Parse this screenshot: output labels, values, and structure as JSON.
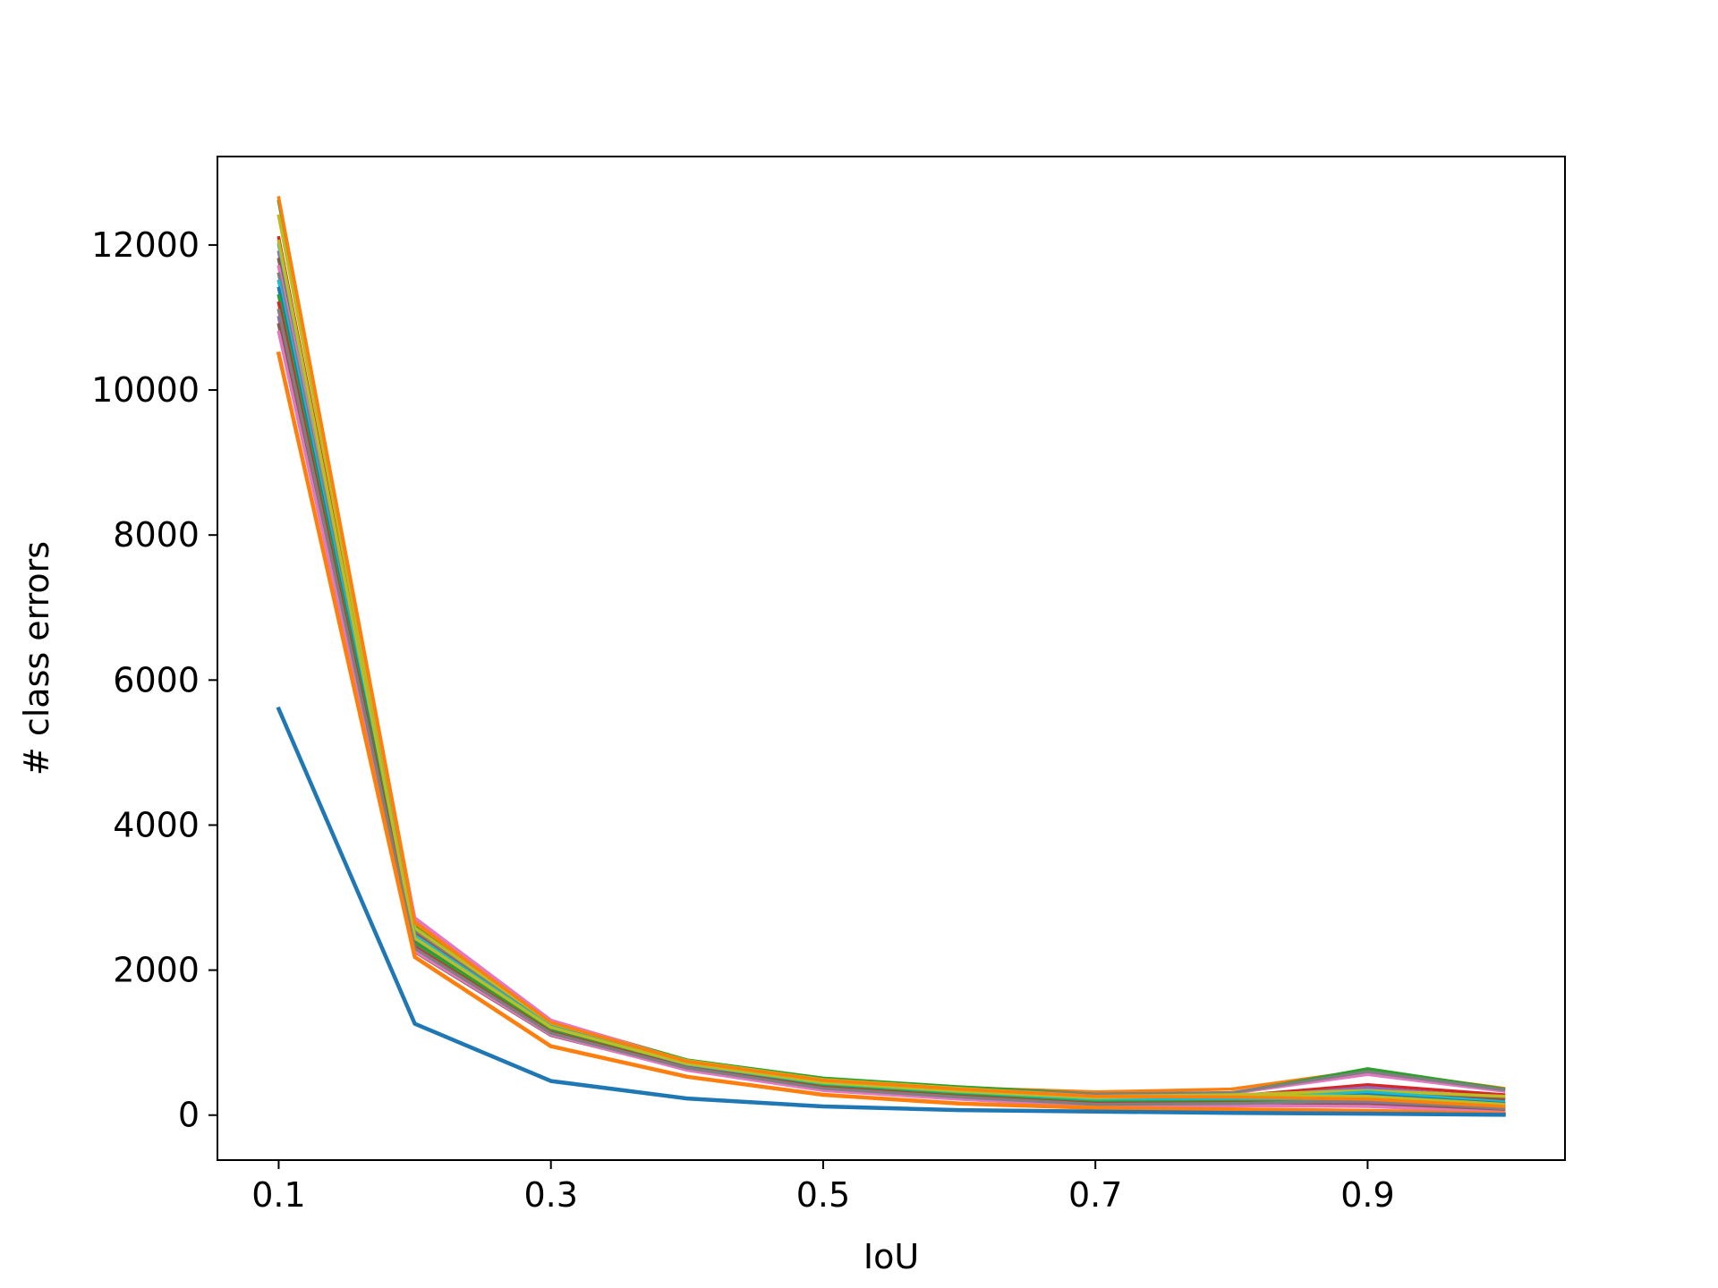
{
  "chart_data": {
    "type": "line",
    "title": "",
    "xlabel": "IoU",
    "ylabel": "# class errors",
    "xlim": [
      0.055,
      1.045
    ],
    "ylim": [
      -620,
      13220
    ],
    "xticks": [
      0.1,
      0.3,
      0.5,
      0.7,
      0.9
    ],
    "xtick_labels": [
      "0.1",
      "0.3",
      "0.5",
      "0.7",
      "0.9"
    ],
    "yticks": [
      0,
      2000,
      4000,
      6000,
      8000,
      10000,
      12000
    ],
    "ytick_labels": [
      "0",
      "2000",
      "4000",
      "6000",
      "8000",
      "10000",
      "12000"
    ],
    "grid": false,
    "legend": "none",
    "x": [
      0.1,
      0.2,
      0.3,
      0.4,
      0.5,
      0.6,
      0.7,
      0.8,
      0.9,
      1.0
    ],
    "series": [
      {
        "color": "#ff7f0e",
        "values": [
          12650,
          2700,
          1300,
          760,
          500,
          380,
          320,
          360,
          620,
          370
        ]
      },
      {
        "color": "#2ca02c",
        "values": [
          12600,
          2620,
          1290,
          760,
          510,
          390,
          290,
          300,
          640,
          360
        ]
      },
      {
        "color": "#d62728",
        "values": [
          12100,
          2500,
          1230,
          720,
          460,
          340,
          250,
          260,
          420,
          280
        ]
      },
      {
        "color": "#9467bd",
        "values": [
          11900,
          2350,
          1150,
          680,
          420,
          310,
          230,
          240,
          380,
          230
        ]
      },
      {
        "color": "#8c564b",
        "values": [
          11800,
          2300,
          1180,
          700,
          440,
          320,
          240,
          250,
          300,
          220
        ]
      },
      {
        "color": "#e377c2",
        "values": [
          11700,
          2720,
          1310,
          740,
          470,
          350,
          280,
          300,
          560,
          330
        ]
      },
      {
        "color": "#7f7f7f",
        "values": [
          11600,
          2550,
          1260,
          730,
          480,
          360,
          290,
          310,
          600,
          350
        ]
      },
      {
        "color": "#bcbd22",
        "values": [
          12400,
          2580,
          1270,
          750,
          490,
          370,
          260,
          280,
          340,
          260
        ]
      },
      {
        "color": "#17becf",
        "values": [
          11500,
          2450,
          1200,
          700,
          430,
          300,
          200,
          210,
          320,
          180
        ]
      },
      {
        "color": "#1f77b4",
        "values": [
          11400,
          2400,
          1180,
          690,
          420,
          290,
          190,
          200,
          280,
          160
        ]
      },
      {
        "color": "#2ca02c",
        "values": [
          11300,
          2380,
          1160,
          670,
          400,
          280,
          180,
          190,
          240,
          140
        ]
      },
      {
        "color": "#d62728",
        "values": [
          11200,
          2320,
          1140,
          660,
          380,
          260,
          160,
          170,
          180,
          100
        ]
      },
      {
        "color": "#9467bd",
        "values": [
          11000,
          2280,
          1120,
          640,
          360,
          240,
          140,
          150,
          160,
          80
        ]
      },
      {
        "color": "#8c564b",
        "values": [
          10900,
          2250,
          1100,
          630,
          350,
          230,
          130,
          140,
          140,
          60
        ]
      },
      {
        "color": "#e377c2",
        "values": [
          10800,
          2260,
          1110,
          620,
          340,
          220,
          120,
          130,
          120,
          40
        ]
      },
      {
        "color": "#17becf",
        "values": [
          12000,
          2480,
          1220,
          700,
          440,
          320,
          220,
          230,
          220,
          120
        ]
      },
      {
        "color": "#bcbd22",
        "values": [
          12050,
          2440,
          1210,
          710,
          450,
          330,
          240,
          270,
          260,
          150
        ]
      },
      {
        "color": "#7f7f7f",
        "values": [
          11100,
          2300,
          1130,
          650,
          370,
          250,
          150,
          160,
          200,
          90
        ]
      },
      {
        "color": "#ff7f0e",
        "values": [
          10500,
          2180,
          950,
          530,
          280,
          160,
          100,
          80,
          60,
          20
        ]
      },
      {
        "color": "#1f77b4",
        "values": [
          5600,
          1260,
          470,
          230,
          120,
          70,
          50,
          30,
          20,
          5
        ]
      },
      {
        "color": "#ff7f0e",
        "values": [
          12650,
          2650,
          1280,
          740,
          480,
          360,
          260,
          250,
          220,
          120
        ]
      }
    ]
  }
}
